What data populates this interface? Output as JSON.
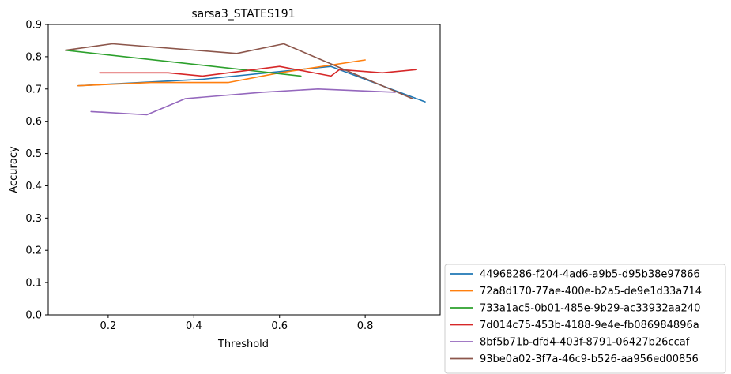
{
  "chart_data": {
    "type": "line",
    "title": "sarsa3_STATES191",
    "xlabel": "Threshold",
    "ylabel": "Accuracy",
    "xlim": [
      0.06,
      0.975
    ],
    "ylim": [
      0.0,
      0.9
    ],
    "xticks": [
      0.2,
      0.4,
      0.6,
      0.8
    ],
    "xtick_labels": [
      "0.2",
      "0.4",
      "0.6",
      "0.8"
    ],
    "yticks": [
      0.0,
      0.1,
      0.2,
      0.3,
      0.4,
      0.5,
      0.6,
      0.7,
      0.8,
      0.9
    ],
    "ytick_labels": [
      "0.0",
      "0.1",
      "0.2",
      "0.3",
      "0.4",
      "0.5",
      "0.6",
      "0.7",
      "0.8",
      "0.9"
    ],
    "grid": false,
    "legend_position": "outside-bottom-right",
    "series": [
      {
        "name": "44968286-f204-4ad6-a9b5-d95b38e97866",
        "color": "#1f77b4",
        "x": [
          0.13,
          0.42,
          0.72,
          0.94
        ],
        "y": [
          0.71,
          0.73,
          0.77,
          0.66
        ]
      },
      {
        "name": "72a8d170-77ae-400e-b2a5-de9e1d33a714",
        "color": "#ff7f0e",
        "x": [
          0.13,
          0.3,
          0.48,
          0.6,
          0.8
        ],
        "y": [
          0.71,
          0.72,
          0.72,
          0.75,
          0.79
        ]
      },
      {
        "name": "733a1ac5-0b01-485e-9b29-ac33932aa240",
        "color": "#2ca02c",
        "x": [
          0.1,
          0.65
        ],
        "y": [
          0.82,
          0.74
        ]
      },
      {
        "name": "7d014c75-453b-4188-9e4e-fb086984896a",
        "color": "#d62728",
        "x": [
          0.18,
          0.34,
          0.42,
          0.6,
          0.72,
          0.74,
          0.84,
          0.92
        ],
        "y": [
          0.75,
          0.75,
          0.74,
          0.77,
          0.74,
          0.76,
          0.75,
          0.76
        ]
      },
      {
        "name": "8bf5b71b-dfd4-403f-8791-06427b26ccaf",
        "color": "#9467bd",
        "x": [
          0.16,
          0.29,
          0.38,
          0.56,
          0.69,
          0.87
        ],
        "y": [
          0.63,
          0.62,
          0.67,
          0.69,
          0.7,
          0.69
        ]
      },
      {
        "name": "93be0a02-3f7a-46c9-b526-aa956ed00856",
        "color": "#8c564b",
        "x": [
          0.1,
          0.21,
          0.5,
          0.61,
          0.91
        ],
        "y": [
          0.82,
          0.84,
          0.81,
          0.84,
          0.67
        ]
      }
    ]
  }
}
